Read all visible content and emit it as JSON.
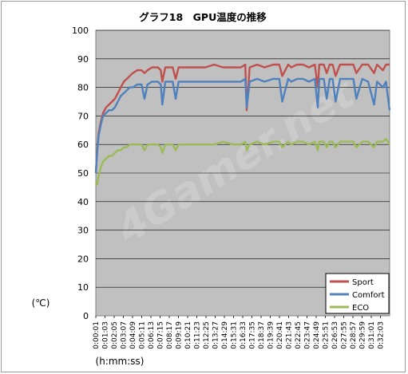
{
  "chart_data": {
    "type": "line",
    "title": "グラフ18　GPU温度の推移",
    "ylabel": "(℃)",
    "xlabel": "(h:mm:ss)",
    "ylim": [
      0,
      100
    ],
    "yticks": [
      0,
      10,
      20,
      30,
      40,
      50,
      60,
      70,
      80,
      90,
      100
    ],
    "grid": true,
    "legend_position": "bottom-right",
    "watermark": "4Gamer.net",
    "plot_background": "#c0c0c0",
    "x_tick_labels": [
      "0:00:01",
      "0:01:03",
      "0:02:05",
      "0:03:07",
      "0:04:09",
      "0:05:11",
      "0:06:13",
      "0:07:15",
      "0:08:17",
      "0:09:19",
      "0:10:21",
      "0:11:23",
      "0:12:25",
      "0:13:27",
      "0:14:29",
      "0:15:31",
      "0:16:33",
      "0:17:35",
      "0:18:37",
      "0:19:39",
      "0:20:41",
      "0:21:43",
      "0:22:45",
      "0:23:47",
      "0:24:49",
      "0:25:51",
      "0:26:53",
      "0:27:55",
      "0:28:57",
      "0:29:59",
      "0:31:01",
      "0:32:03"
    ],
    "x_tick_seconds": [
      1,
      63,
      125,
      187,
      249,
      311,
      373,
      435,
      497,
      559,
      621,
      683,
      745,
      807,
      869,
      931,
      993,
      1055,
      1117,
      1179,
      1241,
      1303,
      1365,
      1427,
      1489,
      1551,
      1613,
      1675,
      1737,
      1799,
      1861,
      1923
    ],
    "x_range_seconds": [
      1,
      1985
    ],
    "series": [
      {
        "name": "Sport",
        "color": "#c0504d",
        "x": [
          1,
          10,
          20,
          35,
          50,
          70,
          90,
          110,
          130,
          150,
          170,
          190,
          210,
          230,
          250,
          280,
          310,
          330,
          350,
          380,
          420,
          440,
          450,
          470,
          520,
          540,
          560,
          600,
          640,
          690,
          740,
          800,
          860,
          930,
          980,
          1010,
          1020,
          1040,
          1090,
          1140,
          1200,
          1240,
          1260,
          1300,
          1320,
          1360,
          1400,
          1440,
          1480,
          1500,
          1510,
          1540,
          1560,
          1580,
          1600,
          1620,
          1650,
          1700,
          1740,
          1760,
          1800,
          1840,
          1880,
          1900,
          1940,
          1960,
          1985
        ],
        "y": [
          50,
          58,
          64,
          68,
          71,
          73,
          74,
          75,
          76,
          78,
          80,
          82,
          83,
          84,
          85,
          86,
          86,
          85,
          86,
          87,
          87,
          86,
          82,
          87,
          87,
          83,
          87,
          87,
          87,
          87,
          87,
          88,
          87,
          87,
          87,
          88,
          72,
          87,
          88,
          87,
          88,
          88,
          84,
          88,
          87,
          88,
          88,
          87,
          88,
          80,
          88,
          88,
          85,
          88,
          88,
          84,
          88,
          88,
          88,
          85,
          88,
          88,
          85,
          88,
          86,
          88,
          88
        ]
      },
      {
        "name": "Comfort",
        "color": "#4f81bd",
        "x": [
          1,
          10,
          20,
          35,
          50,
          70,
          90,
          110,
          130,
          150,
          170,
          190,
          210,
          230,
          250,
          280,
          310,
          330,
          350,
          380,
          420,
          440,
          450,
          470,
          520,
          540,
          560,
          600,
          640,
          690,
          740,
          800,
          860,
          930,
          980,
          1010,
          1020,
          1040,
          1090,
          1140,
          1200,
          1240,
          1260,
          1300,
          1320,
          1360,
          1400,
          1440,
          1480,
          1500,
          1510,
          1540,
          1560,
          1580,
          1600,
          1620,
          1650,
          1700,
          1740,
          1760,
          1800,
          1840,
          1880,
          1900,
          1940,
          1960,
          1985
        ],
        "y": [
          50,
          57,
          63,
          67,
          70,
          71,
          72,
          72,
          73,
          75,
          77,
          78,
          79,
          80,
          80,
          81,
          81,
          76,
          81,
          82,
          82,
          81,
          74,
          82,
          82,
          76,
          82,
          82,
          82,
          82,
          82,
          82,
          82,
          82,
          82,
          83,
          73,
          82,
          83,
          82,
          83,
          83,
          75,
          83,
          82,
          83,
          83,
          82,
          83,
          73,
          83,
          83,
          76,
          83,
          83,
          75,
          83,
          83,
          83,
          76,
          83,
          82,
          74,
          82,
          80,
          82,
          72
        ]
      },
      {
        "name": "ECO",
        "color": "#9bbb59",
        "x": [
          1,
          10,
          20,
          35,
          50,
          70,
          90,
          110,
          130,
          150,
          170,
          190,
          210,
          230,
          250,
          280,
          310,
          330,
          350,
          380,
          420,
          440,
          450,
          470,
          520,
          540,
          560,
          600,
          640,
          690,
          740,
          800,
          860,
          930,
          980,
          1010,
          1020,
          1040,
          1090,
          1140,
          1200,
          1240,
          1260,
          1300,
          1320,
          1360,
          1400,
          1440,
          1480,
          1500,
          1510,
          1540,
          1560,
          1580,
          1600,
          1620,
          1650,
          1700,
          1740,
          1760,
          1800,
          1840,
          1880,
          1900,
          1940,
          1960,
          1985
        ],
        "y": [
          47,
          46,
          49,
          52,
          54,
          55,
          56,
          56,
          57,
          58,
          58,
          59,
          59,
          60,
          60,
          60,
          60,
          58,
          60,
          60,
          60,
          59,
          57,
          60,
          60,
          58,
          60,
          60,
          60,
          60,
          60,
          60,
          61,
          60,
          60,
          61,
          58,
          60,
          61,
          60,
          61,
          61,
          59,
          61,
          60,
          61,
          61,
          60,
          61,
          58,
          61,
          61,
          59,
          61,
          61,
          59,
          61,
          61,
          61,
          59,
          61,
          61,
          59,
          61,
          61,
          62,
          60
        ]
      }
    ]
  }
}
